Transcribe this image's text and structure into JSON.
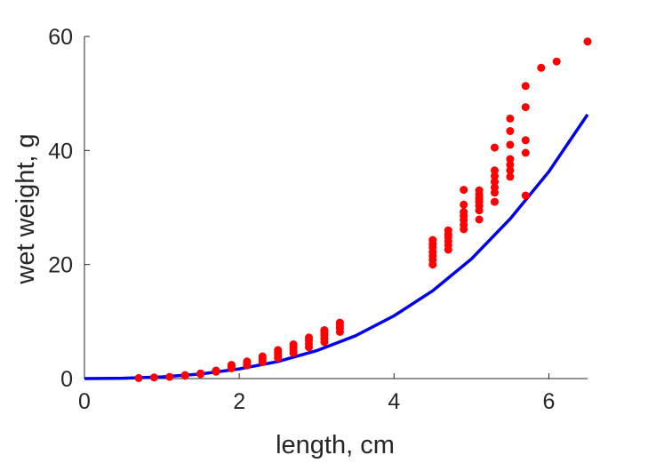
{
  "chart_data": {
    "type": "scatter",
    "title": "",
    "xlabel": "length, cm",
    "ylabel": "wet weight, g",
    "xlim": [
      0,
      6.5
    ],
    "ylim": [
      0,
      60
    ],
    "xticks": [
      0,
      2,
      4,
      6
    ],
    "yticks": [
      0,
      20,
      40,
      60
    ],
    "grid": false,
    "legend": "none",
    "colors": {
      "points": "#ff0000",
      "fit": "#0000ee",
      "axis": "#262626"
    },
    "series": [
      {
        "kind": "points",
        "x": [
          0.7,
          0.9,
          1.1,
          1.3,
          1.3,
          1.5,
          1.5,
          1.7,
          1.7,
          1.9,
          1.9,
          1.9,
          2.1,
          2.1,
          2.1,
          2.3,
          2.3,
          2.3,
          2.3,
          2.5,
          2.5,
          2.5,
          2.5,
          2.7,
          2.7,
          2.7,
          2.7,
          2.9,
          2.9,
          2.9,
          2.9,
          3.1,
          3.1,
          3.1,
          3.1,
          3.1,
          3.3,
          3.3,
          3.3,
          3.3,
          4.5,
          4.5,
          4.5,
          4.5,
          4.5,
          4.5,
          4.5,
          4.7,
          4.7,
          4.7,
          4.7,
          4.7,
          4.7,
          4.9,
          4.9,
          4.9,
          4.9,
          4.9,
          4.9,
          4.9,
          5.1,
          5.1,
          5.1,
          5.1,
          5.1,
          5.1,
          5.1,
          5.1,
          5.3,
          5.3,
          5.3,
          5.3,
          5.3,
          5.3,
          5.3,
          5.5,
          5.5,
          5.5,
          5.5,
          5.5,
          5.5,
          5.5,
          5.7,
          5.7,
          5.7,
          5.7,
          5.7,
          5.9,
          6.1,
          6.5
        ],
        "y": [
          0.1,
          0.2,
          0.3,
          0.5,
          0.6,
          0.8,
          0.9,
          1.2,
          1.4,
          1.8,
          2.1,
          2.4,
          2.3,
          2.7,
          3.0,
          2.9,
          3.3,
          3.6,
          3.9,
          3.6,
          4.1,
          4.6,
          5.0,
          4.5,
          5.0,
          5.5,
          6.0,
          5.5,
          6.1,
          6.7,
          7.2,
          6.4,
          7.0,
          7.6,
          8.1,
          8.5,
          8.2,
          8.8,
          9.3,
          9.8,
          20.0,
          20.8,
          21.5,
          22.2,
          23.0,
          23.6,
          24.3,
          22.6,
          23.4,
          24.1,
          24.8,
          25.3,
          26.0,
          26.2,
          27.0,
          27.8,
          28.5,
          29.2,
          30.5,
          33.1,
          27.9,
          29.5,
          30.3,
          31.0,
          31.8,
          32.3,
          33.0,
          31.5,
          31.0,
          32.6,
          33.5,
          34.5,
          35.5,
          36.5,
          40.5,
          35.4,
          36.5,
          37.5,
          38.5,
          41.0,
          43.4,
          45.6,
          32.1,
          39.6,
          41.8,
          47.6,
          51.3,
          54.5,
          55.6,
          59.1
        ]
      },
      {
        "kind": "fit-line",
        "x": [
          0,
          0.5,
          1.0,
          1.5,
          2.0,
          2.5,
          3.0,
          3.5,
          4.0,
          4.5,
          5.0,
          5.5,
          6.0,
          6.5
        ],
        "y": [
          0,
          0.06,
          0.3,
          0.8,
          1.7,
          3.0,
          4.9,
          7.5,
          11.0,
          15.4,
          21.0,
          28.0,
          36.3,
          46.3
        ]
      }
    ]
  }
}
